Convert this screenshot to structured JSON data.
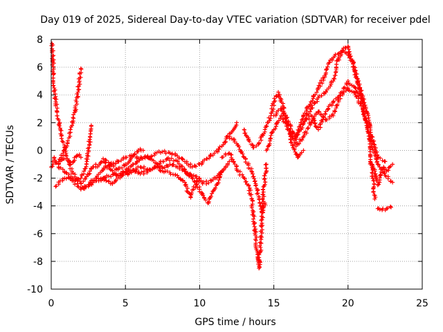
{
  "chart_data": {
    "type": "scatter",
    "title": "Day 019 of 2025, Sidereal Day-to-day VTEC variation (SDTVAR) for receiver pdel",
    "xlabel": "GPS time / hours",
    "ylabel": "SDTVAR / TECUs",
    "xlim": [
      0,
      25
    ],
    "ylim": [
      -10,
      8
    ],
    "xticks": [
      "0",
      "5",
      "10",
      "15",
      "20",
      "25"
    ],
    "yticks": [
      "-10",
      "-8",
      "-6",
      "-4",
      "-2",
      "0",
      "2",
      "4",
      "6",
      "8"
    ],
    "grid": true,
    "marker": "+",
    "series_color": "#ff0000",
    "series": [
      {
        "name": "trace-1",
        "x": [
          0.0,
          0.1,
          0.2,
          0.3,
          0.5,
          0.7,
          1.0,
          1.3,
          1.5,
          1.7,
          1.9,
          2.0
        ],
        "y": [
          -1.2,
          -0.8,
          -0.5,
          -0.9,
          -1.0,
          -0.7,
          -0.6,
          -1.0,
          -0.8,
          -0.4,
          -0.3,
          -0.5
        ]
      },
      {
        "name": "trace-2",
        "x": [
          0.05,
          0.1,
          0.15,
          0.2,
          0.3,
          0.4,
          0.5,
          0.6,
          0.7,
          0.8,
          0.9,
          1.0,
          1.1,
          1.2,
          1.4,
          1.6,
          1.8,
          2.0,
          2.3,
          2.6,
          2.8,
          3.0
        ],
        "y": [
          7.7,
          6.8,
          5.5,
          4.5,
          3.5,
          2.8,
          2.2,
          1.6,
          1.1,
          0.6,
          0.2,
          -0.2,
          -0.6,
          -1.0,
          -1.5,
          -1.9,
          -2.2,
          -2.4,
          -2.0,
          -1.5,
          -1.2,
          -1.0
        ]
      },
      {
        "name": "trace-3",
        "x": [
          0.5,
          0.8,
          1.0,
          1.1,
          1.2,
          1.3,
          1.4,
          1.5,
          1.6,
          1.7,
          1.8,
          1.9,
          2.0
        ],
        "y": [
          -0.8,
          -0.2,
          0.2,
          0.5,
          0.9,
          1.3,
          1.8,
          2.3,
          2.9,
          3.5,
          4.2,
          5.0,
          5.9
        ]
      },
      {
        "name": "trace-4",
        "x": [
          0.3,
          0.6,
          0.9,
          1.2,
          1.5,
          1.8,
          2.0,
          2.2,
          2.4,
          2.5,
          2.6,
          2.7
        ],
        "y": [
          -2.6,
          -2.2,
          -2.0,
          -2.0,
          -2.1,
          -2.2,
          -2.0,
          -1.5,
          -0.8,
          0.0,
          0.8,
          1.8
        ]
      },
      {
        "name": "trace-5",
        "x": [
          0.5,
          1.0,
          1.5,
          2.0,
          2.5,
          3.0,
          3.5,
          4.0,
          4.5,
          5.0,
          5.5,
          6.0,
          6.5,
          7.0,
          7.5,
          8.0,
          8.5,
          9.0,
          9.2,
          9.4,
          9.6,
          10.0
        ],
        "y": [
          -1.2,
          -1.6,
          -2.2,
          -2.8,
          -2.6,
          -2.2,
          -2.0,
          -2.4,
          -2.0,
          -1.6,
          -1.4,
          -1.7,
          -1.5,
          -1.2,
          -1.5,
          -1.6,
          -1.8,
          -2.3,
          -3.0,
          -3.4,
          -2.8,
          -2.0
        ]
      },
      {
        "name": "trace-6",
        "x": [
          2.0,
          2.5,
          3.0,
          3.5,
          4.0,
          4.5,
          5.0,
          5.5,
          6.0,
          6.5,
          7.0,
          7.5,
          8.0,
          8.5,
          9.0,
          9.5,
          10.0,
          10.5,
          11.0,
          11.5,
          12.0,
          12.5
        ],
        "y": [
          -2.8,
          -2.5,
          -2.0,
          -1.4,
          -1.0,
          -0.8,
          -0.5,
          -0.4,
          -0.6,
          -0.5,
          -0.2,
          -0.1,
          -0.2,
          -0.4,
          -0.8,
          -1.2,
          -1.0,
          -0.6,
          -0.2,
          0.3,
          1.2,
          2.0
        ]
      },
      {
        "name": "trace-7",
        "x": [
          3.0,
          3.5,
          4.0,
          4.5,
          5.0,
          5.5,
          6.0,
          6.5,
          7.0,
          7.5,
          8.0,
          8.5,
          9.0,
          9.5,
          10.0,
          10.3,
          10.6,
          11.0,
          11.5
        ],
        "y": [
          -1.2,
          -0.8,
          -1.4,
          -1.8,
          -1.5,
          -1.0,
          -0.6,
          -0.4,
          -0.9,
          -1.3,
          -1.0,
          -1.2,
          -1.5,
          -2.0,
          -2.8,
          -3.4,
          -3.8,
          -2.8,
          -1.5
        ]
      },
      {
        "name": "trace-8",
        "x": [
          3.5,
          4.0,
          4.5,
          5.0,
          5.5,
          6.0,
          6.2
        ],
        "y": [
          -0.6,
          -1.0,
          -1.4,
          -1.0,
          -0.4,
          0.1,
          0.0
        ]
      },
      {
        "name": "trace-9",
        "x": [
          3.2,
          3.6,
          4.2,
          4.8,
          5.4,
          6.0,
          6.6,
          7.2,
          7.8,
          8.4,
          9.0,
          9.6,
          10.2,
          10.8,
          11.4,
          12.0
        ],
        "y": [
          -2.2,
          -2.0,
          -1.7,
          -1.8,
          -1.6,
          -1.2,
          -1.4,
          -1.0,
          -0.6,
          -0.7,
          -1.4,
          -1.8,
          -2.4,
          -2.2,
          -1.6,
          -0.8
        ]
      },
      {
        "name": "trace-10",
        "x": [
          11.5,
          12.0,
          12.3,
          12.6,
          13.0,
          13.3,
          13.5,
          13.6,
          13.7,
          13.8,
          13.9,
          14.0,
          14.1,
          14.2,
          14.3,
          14.5
        ],
        "y": [
          -0.5,
          -0.2,
          -0.8,
          -1.5,
          -2.0,
          -2.5,
          -3.5,
          -4.5,
          -5.5,
          -6.5,
          -7.5,
          -8.5,
          -7.0,
          -5.0,
          -3.0,
          -1.0
        ]
      },
      {
        "name": "trace-11",
        "x": [
          12.0,
          12.5,
          13.0,
          13.5,
          13.8,
          14.0,
          14.2,
          14.4
        ],
        "y": [
          1.0,
          0.5,
          -0.5,
          -1.5,
          -2.5,
          -3.5,
          -4.5,
          -3.8
        ]
      },
      {
        "name": "trace-12",
        "x": [
          13.0,
          13.3,
          13.6,
          14.0,
          14.4,
          14.8,
          15.0,
          15.3,
          15.6,
          16.0,
          16.3,
          16.6,
          17.0
        ],
        "y": [
          1.5,
          0.8,
          0.2,
          0.5,
          1.5,
          2.5,
          3.5,
          4.2,
          3.2,
          1.5,
          0.2,
          -0.5,
          0.0
        ]
      },
      {
        "name": "trace-13",
        "x": [
          14.5,
          15.0,
          15.5,
          16.0,
          16.5,
          17.0,
          17.5,
          18.0,
          18.5,
          19.0,
          19.5,
          20.0,
          20.5,
          21.0,
          21.3,
          21.6,
          21.8
        ],
        "y": [
          0.0,
          1.5,
          2.5,
          1.5,
          0.3,
          1.0,
          2.0,
          2.8,
          2.2,
          2.5,
          4.0,
          5.0,
          4.5,
          3.5,
          1.5,
          -1.0,
          -3.5
        ]
      },
      {
        "name": "trace-14",
        "x": [
          15.0,
          15.5,
          16.0,
          16.5,
          17.0,
          17.5,
          18.0,
          18.5,
          19.0,
          19.3,
          19.6,
          19.8,
          20.0,
          20.3,
          20.6,
          21.0
        ],
        "y": [
          2.5,
          3.0,
          2.0,
          0.8,
          2.0,
          3.0,
          3.8,
          4.2,
          5.0,
          6.5,
          7.2,
          7.4,
          7.5,
          6.5,
          5.0,
          3.5
        ]
      },
      {
        "name": "trace-15",
        "x": [
          16.5,
          17.0,
          17.5,
          18.0,
          18.5,
          18.8,
          19.1,
          19.4,
          19.7,
          20.0,
          20.4,
          20.8,
          21.2,
          21.6,
          22.0,
          22.5
        ],
        "y": [
          1.0,
          2.5,
          3.5,
          4.5,
          5.5,
          6.5,
          6.8,
          7.0,
          7.2,
          7.0,
          6.0,
          4.5,
          3.0,
          1.0,
          -0.5,
          -0.8
        ]
      },
      {
        "name": "trace-16",
        "x": [
          17.0,
          17.5,
          18.0,
          18.5,
          19.0,
          19.5,
          20.0,
          20.5,
          21.0,
          21.5,
          22.0,
          22.5,
          23.0
        ],
        "y": [
          2.0,
          2.5,
          1.5,
          2.8,
          3.5,
          4.0,
          4.5,
          4.0,
          3.0,
          1.0,
          -1.0,
          -1.8,
          -2.3
        ]
      },
      {
        "name": "trace-17",
        "x": [
          21.5,
          21.8,
          22.0,
          22.2,
          22.4,
          22.6,
          22.8,
          23.0
        ],
        "y": [
          -0.8,
          -1.5,
          -2.5,
          -1.8,
          -1.2,
          -1.5,
          -1.2,
          -1.0
        ]
      },
      {
        "name": "trace-18",
        "x": [
          22.0,
          22.3,
          22.6,
          22.9
        ],
        "y": [
          -4.2,
          -4.3,
          -4.2,
          -4.1
        ]
      }
    ]
  }
}
